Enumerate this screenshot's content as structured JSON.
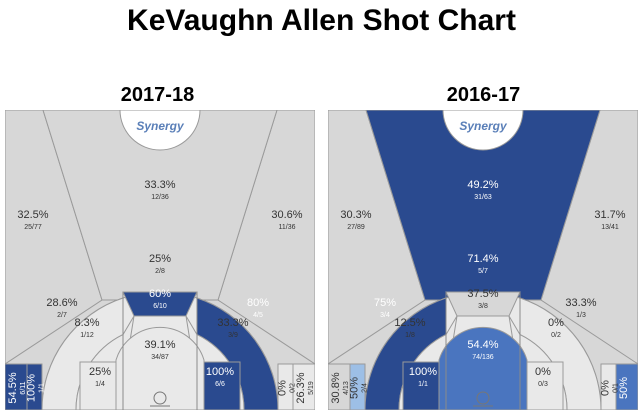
{
  "title": "KeVaughn Allen Shot Chart",
  "logo_text": "Synergy",
  "colors": {
    "gray": "#d7d7d7",
    "light_gray": "#e9e9e9",
    "dark_blue": "#2a4a8f",
    "medium_blue": "#4a75bf",
    "light_blue": "#9dbfe6"
  },
  "chart_data": [
    {
      "type": "heatmap",
      "title": "2017-18",
      "zones": [
        {
          "zone": "left-corner-three",
          "pct": "54.5",
          "made_att": "6/11",
          "color": "dark_blue"
        },
        {
          "zone": "left-baseline-two",
          "pct": "100",
          "made_att": "1/1",
          "color": "dark_blue"
        },
        {
          "zone": "left-wing-three",
          "pct": "32.5",
          "made_att": "25/77",
          "color": "gray"
        },
        {
          "zone": "top-of-key-three",
          "pct": "33.3",
          "made_att": "12/36",
          "color": "gray"
        },
        {
          "zone": "right-wing-three",
          "pct": "30.6",
          "made_att": "11/36",
          "color": "gray"
        },
        {
          "zone": "top-long-two",
          "pct": "25",
          "made_att": "2/8",
          "color": "light_gray"
        },
        {
          "zone": "left-long-two",
          "pct": "28.6",
          "made_att": "2/7",
          "color": "light_gray"
        },
        {
          "zone": "right-long-two",
          "pct": "80",
          "made_att": "4/5",
          "color": "dark_blue"
        },
        {
          "zone": "free-throw-area",
          "pct": "60",
          "made_att": "6/10",
          "color": "dark_blue"
        },
        {
          "zone": "left-mid-range",
          "pct": "8.3",
          "made_att": "1/12",
          "color": "light_gray"
        },
        {
          "zone": "right-mid-range",
          "pct": "33.3",
          "made_att": "3/9",
          "color": "light_gray"
        },
        {
          "zone": "left-low-post",
          "pct": "25",
          "made_att": "1/4",
          "color": "light_gray"
        },
        {
          "zone": "right-low-post",
          "pct": "100",
          "made_att": "6/6",
          "color": "dark_blue"
        },
        {
          "zone": "restricted-area",
          "pct": "39.1",
          "made_att": "34/87",
          "color": "light_gray"
        },
        {
          "zone": "right-baseline-two",
          "pct": "0",
          "made_att": "0/2",
          "color": "light_gray"
        },
        {
          "zone": "right-corner-three",
          "pct": "26.3",
          "made_att": "5/19",
          "color": "light_gray"
        }
      ]
    },
    {
      "type": "heatmap",
      "title": "2016-17",
      "zones": [
        {
          "zone": "left-corner-three",
          "pct": "30.8",
          "made_att": "4/13",
          "color": "gray"
        },
        {
          "zone": "left-baseline-two",
          "pct": "50",
          "made_att": "2/4",
          "color": "light_blue"
        },
        {
          "zone": "left-wing-three",
          "pct": "30.3",
          "made_att": "27/89",
          "color": "gray"
        },
        {
          "zone": "top-of-key-three",
          "pct": "49.2",
          "made_att": "31/63",
          "color": "dark_blue"
        },
        {
          "zone": "right-wing-three",
          "pct": "31.7",
          "made_att": "13/41",
          "color": "gray"
        },
        {
          "zone": "top-long-two",
          "pct": "71.4",
          "made_att": "5/7",
          "color": "dark_blue"
        },
        {
          "zone": "left-long-two",
          "pct": "75",
          "made_att": "3/4",
          "color": "dark_blue"
        },
        {
          "zone": "right-long-two",
          "pct": "33.3",
          "made_att": "1/3",
          "color": "light_gray"
        },
        {
          "zone": "free-throw-area",
          "pct": "37.5",
          "made_att": "3/8",
          "color": "gray"
        },
        {
          "zone": "left-mid-range",
          "pct": "12.5",
          "made_att": "1/8",
          "color": "light_gray"
        },
        {
          "zone": "right-mid-range",
          "pct": "0",
          "made_att": "0/2",
          "color": "light_gray"
        },
        {
          "zone": "left-low-post",
          "pct": "100",
          "made_att": "1/1",
          "color": "dark_blue"
        },
        {
          "zone": "right-low-post",
          "pct": "0",
          "made_att": "0/3",
          "color": "light_gray"
        },
        {
          "zone": "restricted-area",
          "pct": "54.4",
          "made_att": "74/136",
          "color": "medium_blue"
        },
        {
          "zone": "right-baseline-two",
          "pct": "0",
          "made_att": "0/1",
          "color": "light_gray"
        },
        {
          "zone": "right-corner-three",
          "pct": "50",
          "made_att": "",
          "color": "medium_blue"
        }
      ]
    }
  ]
}
